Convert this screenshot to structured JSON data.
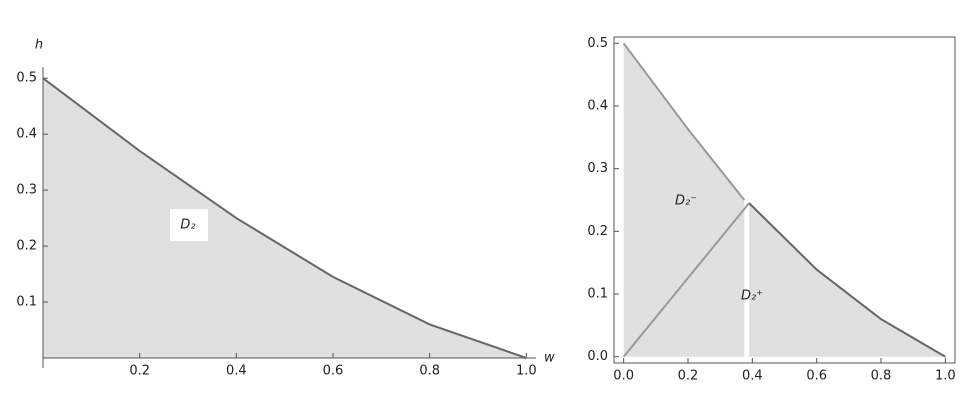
{
  "chart_data": [
    {
      "type": "area",
      "frame": false,
      "y_label": "h",
      "x_label": "w",
      "xlim": [
        0,
        1.02
      ],
      "ylim": [
        0,
        0.52
      ],
      "xticks": [
        0.2,
        0.4,
        0.6,
        0.8,
        {
          "value": 1,
          "label": "1.0"
        }
      ],
      "yticks": [
        0.1,
        0.2,
        0.3,
        0.4,
        0.5
      ],
      "series": [
        {
          "color": "#666666",
          "fill": "#e0e0e0",
          "x": [
            0,
            0.2,
            0.4,
            0.6,
            0.8,
            1.0
          ],
          "values": [
            0.5,
            0.37,
            0.25,
            0.145,
            0.06,
            0
          ]
        }
      ],
      "annotations": [
        "D₂"
      ]
    },
    {
      "type": "area",
      "frame": true,
      "xlim": [
        -0.03,
        1.03
      ],
      "ylim": [
        -0.01,
        0.51
      ],
      "xticks": [
        {
          "value": 0,
          "label": "0.0"
        },
        0.2,
        0.4,
        0.6,
        0.8,
        {
          "value": 1,
          "label": "1.0"
        }
      ],
      "yticks": [
        {
          "value": 0,
          "label": "0.0"
        },
        0.1,
        0.2,
        0.3,
        0.4,
        0.5
      ],
      "series": [
        {
          "color": "#999999",
          "fill": "#e0e0e0",
          "x": [
            0,
            0.2,
            0.375
          ],
          "values": [
            0.5,
            0.363,
            0.25
          ]
        },
        {
          "color": "#999999",
          "fill": "none",
          "x": [
            0,
            0.39
          ],
          "values": [
            0,
            0.245
          ]
        },
        {
          "color": "#666666",
          "fill": "#e0e0e0",
          "x": [
            0.39,
            0.6,
            0.8,
            1.0
          ],
          "values": [
            0.245,
            0.139,
            0.06,
            0
          ]
        }
      ],
      "annotations": [
        "D₂⁻",
        "D₂⁺"
      ]
    }
  ]
}
